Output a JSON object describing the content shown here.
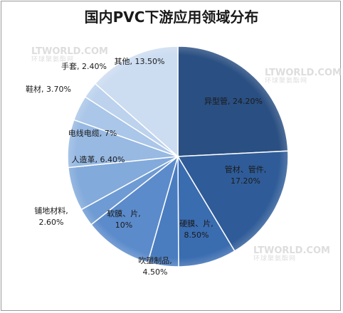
{
  "chart_data": {
    "type": "pie",
    "title": "国内PVC下游应用领域分布",
    "slices": [
      {
        "label": "异型管, 24.20%",
        "value": 24.2,
        "color": "#2a4f82"
      },
      {
        "label": "管材、管件, 17.20%",
        "value": 17.2,
        "color": "#2f5c98"
      },
      {
        "label": "硬膜、片, 8.50%",
        "value": 8.5,
        "color": "#3a6cb0"
      },
      {
        "label": "吹塑制品, 4.50%",
        "value": 4.5,
        "color": "#4a7cc0"
      },
      {
        "label": "软膜、片, 10%",
        "value": 10.0,
        "color": "#5b8bcb"
      },
      {
        "label": "铺地材料, 2.60%",
        "value": 2.6,
        "color": "#6e9bd3"
      },
      {
        "label": "人造革, 6.40%",
        "value": 6.4,
        "color": "#82aadb"
      },
      {
        "label": "电线电缆, 7%",
        "value": 7.0,
        "color": "#97b9e2"
      },
      {
        "label": "鞋材, 3.70%",
        "value": 3.7,
        "color": "#aac6e8"
      },
      {
        "label": "手套, 2.40%",
        "value": 2.4,
        "color": "#bcd2ed"
      },
      {
        "label": "其他, 13.50%",
        "value": 13.5,
        "color": "#ccdcf1"
      }
    ]
  },
  "watermark": {
    "text": "LTWORLD.COM",
    "sub": "环球聚氨酯网"
  }
}
